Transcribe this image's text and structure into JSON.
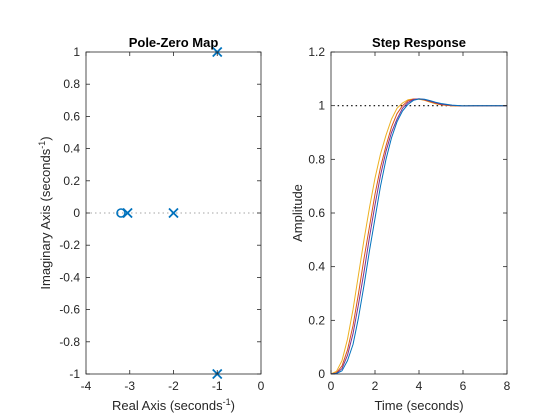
{
  "chart_data": [
    {
      "type": "scatter",
      "title": "Pole-Zero Map",
      "xlabel": "Real Axis (seconds",
      "xlabel_sup": "-1",
      "xlabel_end": ")",
      "ylabel": "Imaginary Axis (seconds",
      "ylabel_sup": "-1",
      "ylabel_end": ")",
      "xlim": [
        -4,
        0
      ],
      "ylim": [
        -1,
        1
      ],
      "xticks": [
        -4,
        -3,
        -2,
        -1,
        0
      ],
      "xtick_labels": [
        "-4",
        "-3",
        "-2",
        "-1",
        "0"
      ],
      "yticks": [
        -1,
        -0.8,
        -0.6,
        -0.4,
        -0.2,
        0,
        0.2,
        0.4,
        0.6,
        0.8,
        1
      ],
      "ytick_labels": [
        "-1",
        "-0.8",
        "-0.6",
        "-0.4",
        "-0.2",
        "0",
        "0.2",
        "0.4",
        "0.6",
        "0.8",
        "1"
      ],
      "grid": false,
      "color": "#0072BD",
      "series": [
        {
          "marker": "x",
          "label": "poles",
          "points": [
            [
              -1,
              1
            ],
            [
              -1,
              -1
            ],
            [
              -2,
              0
            ],
            [
              -3.05,
              0
            ]
          ]
        },
        {
          "marker": "o",
          "label": "zeros",
          "points": [
            [
              -3.2,
              0
            ]
          ]
        }
      ],
      "reference_line": {
        "y": 0,
        "style": "dotted"
      }
    },
    {
      "type": "line",
      "title": "Step Response",
      "xlabel": "Time (seconds)",
      "ylabel": "Amplitude",
      "xlim": [
        0,
        8
      ],
      "ylim": [
        0,
        1.2
      ],
      "xticks": [
        0,
        2,
        4,
        6,
        8
      ],
      "xtick_labels": [
        "0",
        "2",
        "4",
        "6",
        "8"
      ],
      "yticks": [
        0,
        0.2,
        0.4,
        0.6,
        0.8,
        1,
        1.2
      ],
      "ytick_labels": [
        "0",
        "0.2",
        "0.4",
        "0.6",
        "0.8",
        "1",
        "1.2"
      ],
      "grid": false,
      "reference_line": {
        "y": 1,
        "x_from": 0.3,
        "style": "dotted"
      },
      "series": [
        {
          "color": "#EDB120",
          "x": [
            0,
            0.25,
            0.5,
            0.75,
            1,
            1.25,
            1.5,
            1.75,
            2,
            2.25,
            2.5,
            2.75,
            3,
            3.25,
            3.5,
            3.75,
            4,
            4.25,
            4.5,
            4.75,
            5,
            5.5,
            6,
            6.5,
            7,
            7.5,
            8
          ],
          "y": [
            0,
            0.01,
            0.05,
            0.13,
            0.24,
            0.37,
            0.5,
            0.62,
            0.73,
            0.82,
            0.89,
            0.95,
            0.99,
            1.01,
            1.022,
            1.025,
            1.024,
            1.02,
            1.013,
            1.007,
            1.003,
            0.999,
            0.999,
            1,
            1,
            1,
            1
          ]
        },
        {
          "color": "#D95319",
          "x": [
            0,
            0.25,
            0.5,
            0.75,
            1,
            1.25,
            1.5,
            1.75,
            2,
            2.25,
            2.5,
            2.75,
            3,
            3.25,
            3.5,
            3.75,
            4,
            4.25,
            4.5,
            4.75,
            5,
            5.5,
            6,
            6.5,
            7,
            7.5,
            8
          ],
          "y": [
            0,
            0.005,
            0.03,
            0.09,
            0.18,
            0.3,
            0.43,
            0.55,
            0.67,
            0.77,
            0.85,
            0.92,
            0.97,
            1.0,
            1.018,
            1.025,
            1.025,
            1.021,
            1.015,
            1.009,
            1.004,
            1.0,
            0.999,
            1,
            1,
            1,
            1
          ]
        },
        {
          "color": "#7E2F8E",
          "x": [
            0,
            0.25,
            0.5,
            0.75,
            1,
            1.25,
            1.5,
            1.75,
            2,
            2.25,
            2.5,
            2.75,
            3,
            3.25,
            3.5,
            3.75,
            4,
            4.25,
            4.5,
            4.75,
            5,
            5.5,
            6,
            6.5,
            7,
            7.5,
            8
          ],
          "y": [
            0,
            0.003,
            0.02,
            0.07,
            0.15,
            0.26,
            0.38,
            0.51,
            0.63,
            0.74,
            0.83,
            0.9,
            0.95,
            0.99,
            1.012,
            1.023,
            1.026,
            1.023,
            1.017,
            1.011,
            1.006,
            1.001,
            0.999,
            1,
            1,
            1,
            1
          ]
        },
        {
          "color": "#0072BD",
          "x": [
            0,
            0.25,
            0.5,
            0.75,
            1,
            1.25,
            1.5,
            1.75,
            2,
            2.25,
            2.5,
            2.75,
            3,
            3.25,
            3.5,
            3.75,
            4,
            4.25,
            4.5,
            4.75,
            5,
            5.5,
            6,
            6.5,
            7,
            7.5,
            8
          ],
          "y": [
            0,
            0.002,
            0.012,
            0.05,
            0.11,
            0.21,
            0.33,
            0.46,
            0.58,
            0.7,
            0.8,
            0.88,
            0.94,
            0.98,
            1.005,
            1.02,
            1.025,
            1.024,
            1.019,
            1.013,
            1.008,
            1.002,
            0.999,
            1,
            1,
            1,
            1
          ]
        }
      ]
    }
  ]
}
